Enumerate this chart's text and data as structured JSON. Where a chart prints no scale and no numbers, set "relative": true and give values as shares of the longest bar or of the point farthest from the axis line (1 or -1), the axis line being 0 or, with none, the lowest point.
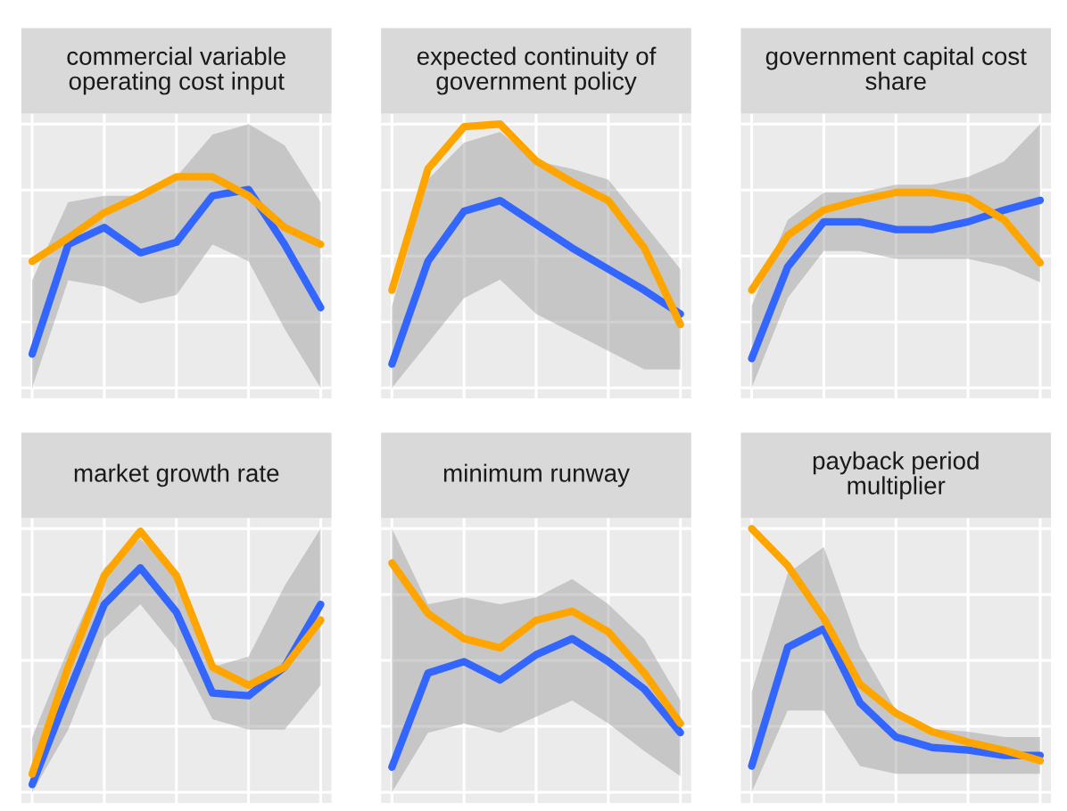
{
  "chart_data": [
    {
      "type": "line",
      "title": "commercial variable\noperating cost input",
      "relative": true,
      "grid": true,
      "categories": [
        null,
        null,
        null,
        null,
        null,
        null,
        null,
        null,
        null
      ],
      "series": [
        {
          "color": "#3366ff",
          "values": [
            0.16,
            0.68,
            0.76,
            0.64,
            0.69,
            0.91,
            0.94,
            0.68,
            0.38
          ],
          "lower": [
            0,
            0.51,
            0.48,
            0.4,
            0.44,
            0.68,
            0.6,
            0.28,
            0
          ],
          "upper": [
            0.51,
            0.88,
            0.91,
            0.91,
            1,
            1.2,
            1.25,
            1.15,
            0.88
          ]
        },
        {
          "color": "#ffa500",
          "values": [
            0.6,
            0.71,
            0.83,
            0.91,
            1,
            1,
            0.91,
            0.76,
            0.68
          ]
        }
      ]
    },
    {
      "type": "line",
      "title": "expected continuity of\ngovernment policy",
      "relative": true,
      "grid": true,
      "categories": [
        null,
        null,
        null,
        null,
        null,
        null,
        null,
        null,
        null
      ],
      "series": [
        {
          "color": "#3366ff",
          "values": [
            0.09,
            0.48,
            0.67,
            0.71,
            0.62,
            0.53,
            0.45,
            0.37,
            0.28
          ],
          "lower": [
            0,
            0.17,
            0.34,
            0.41,
            0.28,
            0.21,
            0.14,
            0.07,
            0.07
          ],
          "upper": [
            0.31,
            0.79,
            0.93,
            0.97,
            0.86,
            0.83,
            0.79,
            0.62,
            0.45
          ]
        },
        {
          "color": "#ffa500",
          "values": [
            0.37,
            0.83,
            0.99,
            1,
            0.86,
            0.78,
            0.71,
            0.53,
            0.24
          ]
        }
      ]
    },
    {
      "type": "line",
      "title": "government capital cost\nshare",
      "relative": true,
      "grid": true,
      "categories": [
        null,
        null,
        null,
        null,
        null,
        null,
        null,
        null,
        null
      ],
      "series": [
        {
          "color": "#3366ff",
          "values": [
            0.15,
            0.62,
            0.85,
            0.85,
            0.81,
            0.81,
            0.85,
            0.91,
            0.96
          ],
          "lower": [
            0,
            0.46,
            0.7,
            0.7,
            0.66,
            0.66,
            0.66,
            0.62,
            0.54
          ],
          "upper": [
            0.42,
            0.86,
            1,
            1,
            1.04,
            1.04,
            1.08,
            1.16,
            1.35
          ]
        },
        {
          "color": "#ffa500",
          "values": [
            0.5,
            0.78,
            0.91,
            0.96,
            1,
            1,
            0.97,
            0.86,
            0.64
          ]
        }
      ]
    },
    {
      "type": "line",
      "title": "market growth rate",
      "relative": true,
      "grid": true,
      "categories": [
        null,
        null,
        null,
        null,
        null,
        null,
        null,
        null,
        null
      ],
      "series": [
        {
          "color": "#3366ff",
          "values": [
            0.03,
            0.38,
            0.72,
            0.86,
            0.69,
            0.38,
            0.37,
            0.48,
            0.72
          ],
          "lower": [
            0,
            0.24,
            0.59,
            0.72,
            0.55,
            0.28,
            0.24,
            0.24,
            0.41
          ],
          "upper": [
            0.21,
            0.55,
            0.86,
            0.97,
            0.83,
            0.48,
            0.52,
            0.79,
            1.01
          ]
        },
        {
          "color": "#ffa500",
          "values": [
            0.07,
            0.48,
            0.83,
            1,
            0.83,
            0.48,
            0.41,
            0.48,
            0.66
          ]
        }
      ]
    },
    {
      "type": "line",
      "title": "minimum runway",
      "relative": true,
      "grid": true,
      "categories": [
        null,
        null,
        null,
        null,
        null,
        null,
        null,
        null,
        null
      ],
      "series": [
        {
          "color": "#3366ff",
          "values": [
            0.11,
            0.52,
            0.57,
            0.49,
            0.6,
            0.67,
            0.57,
            0.45,
            0.26
          ],
          "lower": [
            0,
            0.26,
            0.3,
            0.26,
            0.33,
            0.4,
            0.3,
            0.18,
            0.07
          ],
          "upper": [
            1.15,
            0.82,
            0.85,
            0.82,
            0.85,
            0.93,
            0.82,
            0.67,
            0.4
          ]
        },
        {
          "color": "#ffa500",
          "values": [
            1,
            0.78,
            0.67,
            0.63,
            0.75,
            0.79,
            0.7,
            0.52,
            0.3
          ]
        }
      ]
    },
    {
      "type": "line",
      "title": "payback period\nmultiplier",
      "relative": true,
      "grid": true,
      "categories": [
        null,
        null,
        null,
        null,
        null,
        null,
        null,
        null,
        null
      ],
      "series": [
        {
          "color": "#3366ff",
          "values": [
            0.1,
            0.55,
            0.62,
            0.34,
            0.21,
            0.17,
            0.16,
            0.14,
            0.14
          ],
          "lower": [
            0,
            0.31,
            0.31,
            0.1,
            0.07,
            0.07,
            0.07,
            0.07,
            0.07
          ],
          "upper": [
            0.38,
            0.83,
            0.93,
            0.55,
            0.31,
            0.24,
            0.23,
            0.21,
            0.21
          ]
        },
        {
          "color": "#ffa500",
          "values": [
            1,
            0.86,
            0.66,
            0.41,
            0.3,
            0.23,
            0.19,
            0.16,
            0.12
          ]
        }
      ]
    }
  ]
}
